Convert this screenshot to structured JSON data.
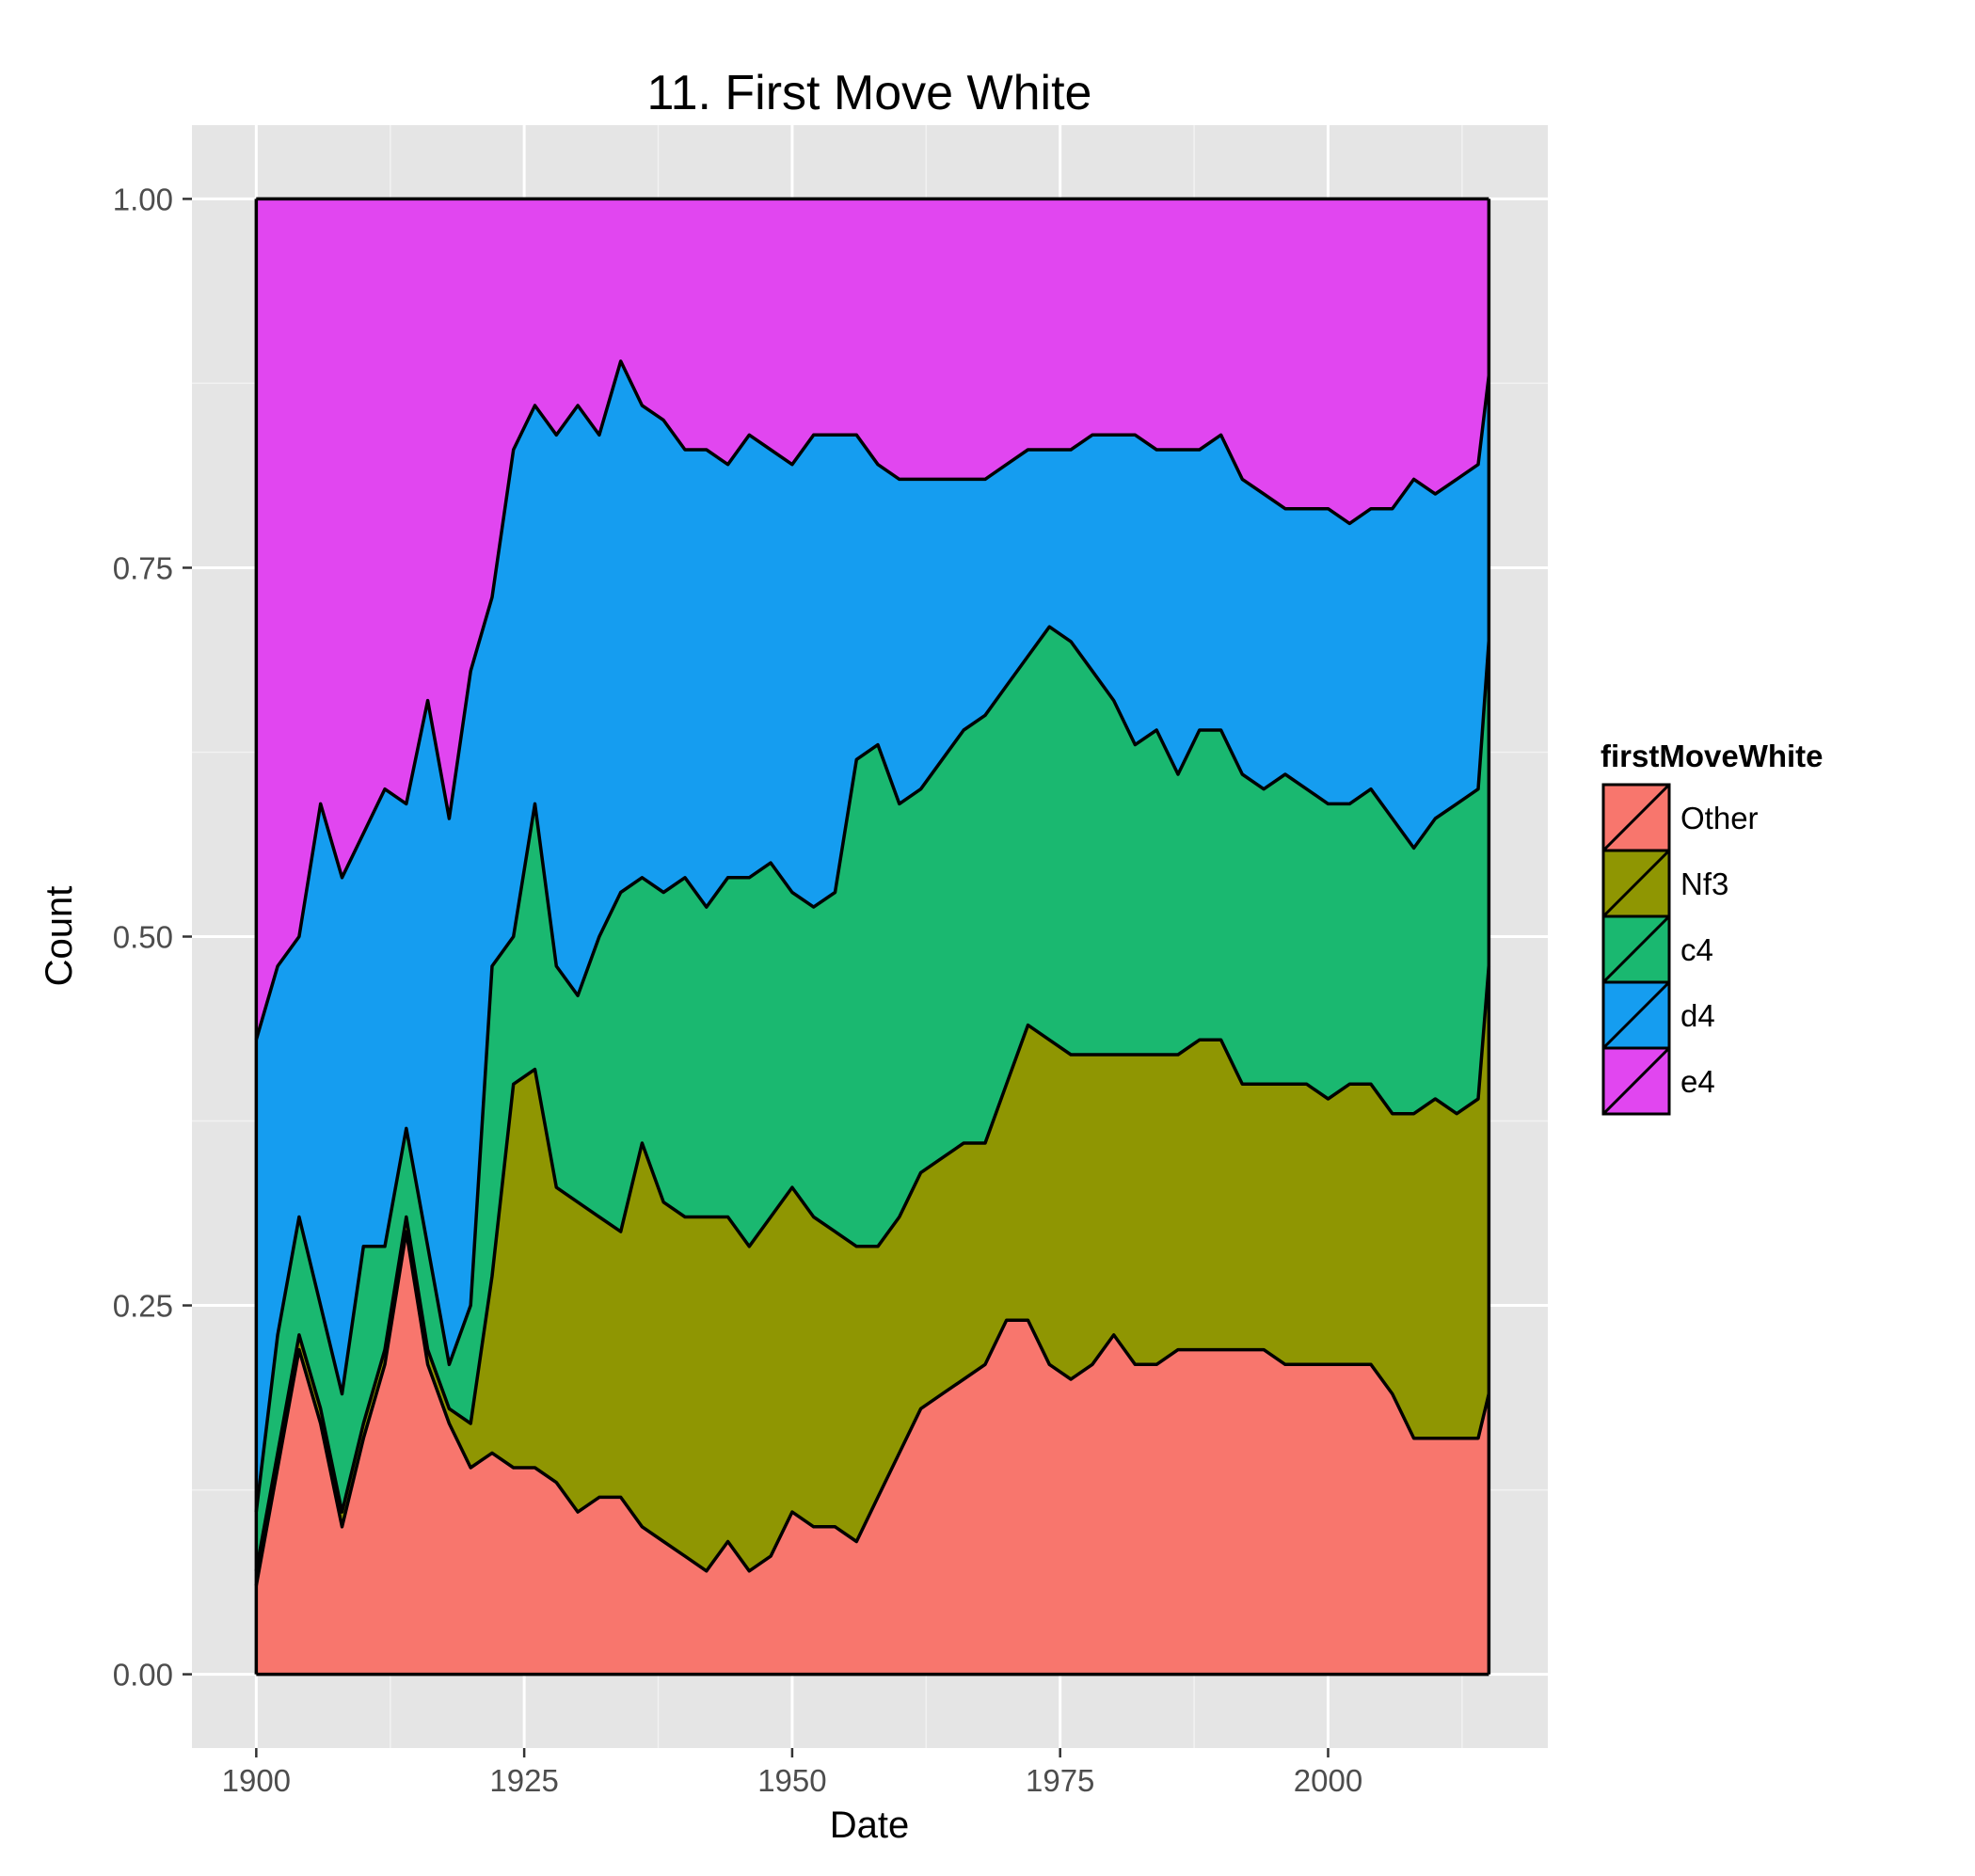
{
  "chart_data": {
    "type": "area",
    "stacked": true,
    "normalized": true,
    "title": "11. First Move White",
    "xlabel": "Date",
    "ylabel": "Count",
    "xlim": [
      1894,
      2020.5
    ],
    "ylim": [
      -0.05,
      1.05
    ],
    "x_ticks": [
      1900,
      1925,
      1950,
      1975,
      2000
    ],
    "y_ticks": [
      0,
      0.25,
      0.5,
      0.75,
      1.0
    ],
    "x_tick_labels": [
      "1900",
      "1925",
      "1950",
      "1975",
      "2000"
    ],
    "y_tick_labels": [
      "0.00",
      "0.25",
      "0.50",
      "0.75",
      "1.00"
    ],
    "grid": true,
    "legend": {
      "title": "firstMoveWhite",
      "position": "right"
    },
    "x": [
      1900,
      1902,
      1904,
      1906,
      1908,
      1910,
      1912,
      1914,
      1916,
      1918,
      1920,
      1922,
      1924,
      1926,
      1928,
      1930,
      1932,
      1934,
      1936,
      1938,
      1940,
      1942,
      1944,
      1946,
      1948,
      1950,
      1952,
      1954,
      1956,
      1958,
      1960,
      1962,
      1964,
      1966,
      1968,
      1970,
      1972,
      1974,
      1976,
      1978,
      1980,
      1982,
      1984,
      1986,
      1988,
      1990,
      1992,
      1994,
      1996,
      1998,
      2000,
      2002,
      2004,
      2006,
      2008,
      2010,
      2012,
      2014,
      2015
    ],
    "series": [
      {
        "name": "Other",
        "color": "#F8766D",
        "values": [
          0.06,
          0.14,
          0.22,
          0.17,
          0.1,
          0.16,
          0.21,
          0.3,
          0.21,
          0.17,
          0.14,
          0.15,
          0.14,
          0.14,
          0.13,
          0.11,
          0.12,
          0.12,
          0.1,
          0.09,
          0.08,
          0.07,
          0.09,
          0.07,
          0.08,
          0.11,
          0.1,
          0.1,
          0.09,
          0.12,
          0.15,
          0.18,
          0.19,
          0.2,
          0.21,
          0.24,
          0.24,
          0.21,
          0.2,
          0.21,
          0.23,
          0.21,
          0.21,
          0.22,
          0.22,
          0.22,
          0.22,
          0.22,
          0.21,
          0.21,
          0.21,
          0.21,
          0.21,
          0.19,
          0.16,
          0.16,
          0.16,
          0.16,
          0.19
        ]
      },
      {
        "name": "Nf3",
        "color": "#8F9602",
        "values": [
          0.01,
          0.01,
          0.01,
          0.01,
          0.01,
          0.01,
          0.01,
          0.01,
          0.01,
          0.01,
          0.03,
          0.12,
          0.26,
          0.27,
          0.2,
          0.21,
          0.19,
          0.18,
          0.26,
          0.23,
          0.23,
          0.24,
          0.22,
          0.22,
          0.23,
          0.22,
          0.21,
          0.2,
          0.2,
          0.17,
          0.16,
          0.16,
          0.16,
          0.16,
          0.15,
          0.16,
          0.2,
          0.22,
          0.22,
          0.21,
          0.19,
          0.21,
          0.21,
          0.2,
          0.21,
          0.21,
          0.18,
          0.18,
          0.19,
          0.19,
          0.18,
          0.19,
          0.19,
          0.19,
          0.22,
          0.23,
          0.22,
          0.23,
          0.29
        ]
      },
      {
        "name": "c4",
        "color": "#1AB870",
        "values": [
          0.04,
          0.08,
          0.08,
          0.07,
          0.08,
          0.12,
          0.07,
          0.06,
          0.07,
          0.03,
          0.08,
          0.21,
          0.1,
          0.18,
          0.15,
          0.14,
          0.19,
          0.23,
          0.18,
          0.21,
          0.23,
          0.21,
          0.23,
          0.25,
          0.24,
          0.2,
          0.21,
          0.23,
          0.33,
          0.34,
          0.28,
          0.26,
          0.27,
          0.28,
          0.29,
          0.27,
          0.25,
          0.28,
          0.28,
          0.26,
          0.24,
          0.21,
          0.22,
          0.19,
          0.21,
          0.21,
          0.21,
          0.2,
          0.21,
          0.2,
          0.2,
          0.19,
          0.2,
          0.2,
          0.18,
          0.19,
          0.21,
          0.21,
          0.22
        ]
      },
      {
        "name": "d4",
        "color": "#159DF0",
        "values": [
          0.32,
          0.25,
          0.19,
          0.34,
          0.35,
          0.28,
          0.31,
          0.22,
          0.37,
          0.37,
          0.43,
          0.25,
          0.33,
          0.27,
          0.36,
          0.4,
          0.34,
          0.36,
          0.32,
          0.32,
          0.29,
          0.31,
          0.28,
          0.3,
          0.28,
          0.29,
          0.32,
          0.31,
          0.22,
          0.19,
          0.22,
          0.21,
          0.19,
          0.17,
          0.16,
          0.15,
          0.14,
          0.12,
          0.13,
          0.16,
          0.18,
          0.21,
          0.19,
          0.22,
          0.19,
          0.2,
          0.2,
          0.2,
          0.18,
          0.19,
          0.2,
          0.19,
          0.19,
          0.21,
          0.25,
          0.22,
          0.22,
          0.22,
          0.18
        ]
      },
      {
        "name": "e4",
        "color": "#E146F0",
        "values": [
          0.57,
          0.52,
          0.5,
          0.41,
          0.46,
          0.43,
          0.4,
          0.41,
          0.34,
          0.42,
          0.32,
          0.27,
          0.17,
          0.14,
          0.16,
          0.14,
          0.16,
          0.11,
          0.14,
          0.15,
          0.17,
          0.17,
          0.18,
          0.16,
          0.17,
          0.18,
          0.16,
          0.16,
          0.16,
          0.18,
          0.19,
          0.19,
          0.19,
          0.19,
          0.19,
          0.18,
          0.17,
          0.17,
          0.17,
          0.16,
          0.16,
          0.16,
          0.17,
          0.17,
          0.17,
          0.16,
          0.19,
          0.2,
          0.21,
          0.21,
          0.21,
          0.22,
          0.21,
          0.21,
          0.19,
          0.2,
          0.19,
          0.18,
          0.12
        ]
      }
    ]
  }
}
